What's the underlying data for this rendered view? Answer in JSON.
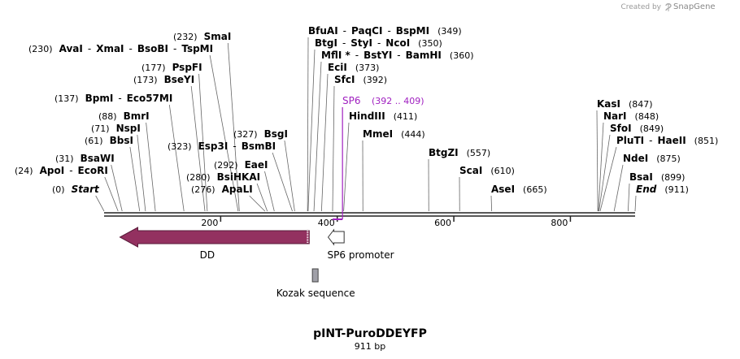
{
  "credit": {
    "prefix": "Created by",
    "brand": "SnapGene"
  },
  "map": {
    "title": "pINT-PuroDDEYFP",
    "length_label": "911 bp",
    "length_bp": 911,
    "ticks": [
      {
        "bp": 200,
        "label": "200"
      },
      {
        "bp": 400,
        "label": "400"
      },
      {
        "bp": 600,
        "label": "600"
      },
      {
        "bp": 800,
        "label": "800"
      }
    ],
    "sites": [
      {
        "names": [
          "AvaI",
          "XmaI",
          "BsoBI",
          "TspMI"
        ],
        "pos_label": "(230)",
        "bp": 230,
        "italic": false
      },
      {
        "names": [
          "SmaI"
        ],
        "pos_label": "(232)",
        "bp": 232,
        "italic": false
      },
      {
        "names": [
          "PspFI"
        ],
        "pos_label": "(177)",
        "bp": 177,
        "italic": false
      },
      {
        "names": [
          "BseYI"
        ],
        "pos_label": "(173)",
        "bp": 173,
        "italic": false
      },
      {
        "names": [
          "BpmI",
          "Eco57MI"
        ],
        "pos_label": "(137)",
        "bp": 137,
        "italic": false
      },
      {
        "names": [
          "BmrI"
        ],
        "pos_label": "(88)",
        "bp": 88,
        "italic": false
      },
      {
        "names": [
          "NspI"
        ],
        "pos_label": "(71)",
        "bp": 71,
        "italic": false
      },
      {
        "names": [
          "BbsI"
        ],
        "pos_label": "(61)",
        "bp": 61,
        "italic": false
      },
      {
        "names": [
          "BsaWI"
        ],
        "pos_label": "(31)",
        "bp": 31,
        "italic": false
      },
      {
        "names": [
          "ApoI",
          "EcoRI"
        ],
        "pos_label": "(24)",
        "bp": 24,
        "italic": false
      },
      {
        "names": [
          "Start"
        ],
        "pos_label": "(0)",
        "bp": 0,
        "italic": true
      },
      {
        "names": [
          "BsgI"
        ],
        "pos_label": "(327)",
        "bp": 327,
        "italic": false
      },
      {
        "names": [
          "Esp3I",
          "BsmBI"
        ],
        "pos_label": "(323)",
        "bp": 323,
        "italic": false
      },
      {
        "names": [
          "EaeI"
        ],
        "pos_label": "(292)",
        "bp": 292,
        "italic": false
      },
      {
        "names": [
          "BsiHKAI"
        ],
        "pos_label": "(280)",
        "bp": 280,
        "italic": false
      },
      {
        "names": [
          "ApaLI"
        ],
        "pos_label": "(276)",
        "bp": 276,
        "italic": false
      },
      {
        "names": [
          "BfuAI",
          "PaqCI",
          "BspMI"
        ],
        "pos_label": "(349)",
        "bp": 349,
        "italic": false
      },
      {
        "names": [
          "BtgI",
          "StyI",
          "NcoI"
        ],
        "pos_label": "(350)",
        "bp": 350,
        "italic": false
      },
      {
        "names": [
          "MflI *",
          "BstYI",
          "BamHI"
        ],
        "pos_label": "(360)",
        "bp": 360,
        "italic": false
      },
      {
        "names": [
          "EciI"
        ],
        "pos_label": "(373)",
        "bp": 373,
        "italic": false
      },
      {
        "names": [
          "SfcI"
        ],
        "pos_label": "(392)",
        "bp": 392,
        "italic": false
      },
      {
        "names": [
          "HindIII"
        ],
        "pos_label": "(411)",
        "bp": 411,
        "italic": false
      },
      {
        "names": [
          "MmeI"
        ],
        "pos_label": "(444)",
        "bp": 444,
        "italic": false
      },
      {
        "names": [
          "BtgZI"
        ],
        "pos_label": "(557)",
        "bp": 557,
        "italic": false
      },
      {
        "names": [
          "ScaI"
        ],
        "pos_label": "(610)",
        "bp": 610,
        "italic": false
      },
      {
        "names": [
          "AseI"
        ],
        "pos_label": "(665)",
        "bp": 665,
        "italic": false
      },
      {
        "names": [
          "KasI"
        ],
        "pos_label": "(847)",
        "bp": 847,
        "italic": false
      },
      {
        "names": [
          "NarI"
        ],
        "pos_label": "(848)",
        "bp": 848,
        "italic": false
      },
      {
        "names": [
          "SfoI"
        ],
        "pos_label": "(849)",
        "bp": 849,
        "italic": false
      },
      {
        "names": [
          "PluTI",
          "HaeII"
        ],
        "pos_label": "(851)",
        "bp": 851,
        "italic": false
      },
      {
        "names": [
          "NdeI"
        ],
        "pos_label": "(875)",
        "bp": 875,
        "italic": false
      },
      {
        "names": [
          "BsaI"
        ],
        "pos_label": "(899)",
        "bp": 899,
        "italic": false
      },
      {
        "names": [
          "End"
        ],
        "pos_label": "(911)",
        "bp": 911,
        "italic": true
      }
    ],
    "primer": {
      "name": "SP6",
      "range_label": "(392 .. 409)",
      "start_bp": 392,
      "end_bp": 409,
      "color": "#a020c0"
    },
    "features": [
      {
        "name": "DD",
        "start_bp": 30,
        "end_bp": 352,
        "direction": "reverse",
        "type": "arrow",
        "color": "#933160"
      },
      {
        "name": "SP6 promoter",
        "start_bp": 390,
        "end_bp": 409,
        "direction": "reverse",
        "type": "arrow",
        "color": "#ffffff"
      },
      {
        "name": "Kozak sequence",
        "start_bp": 349,
        "end_bp": 359,
        "direction": "none",
        "type": "box",
        "color": "#a0a0a8"
      }
    ]
  }
}
